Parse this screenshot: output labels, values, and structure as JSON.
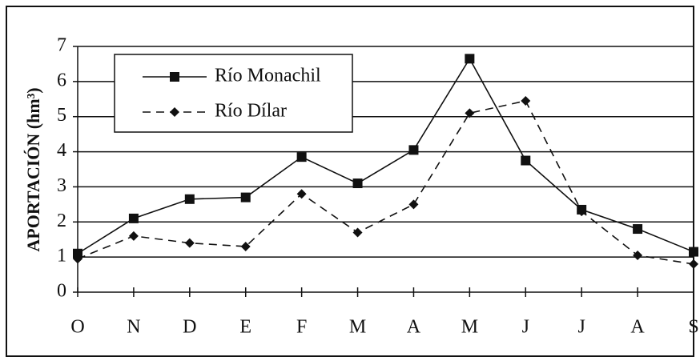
{
  "chart_data": {
    "type": "line",
    "y_label": "APORTACIÓN (hm³)",
    "categories": [
      "O",
      "N",
      "D",
      "E",
      "F",
      "M",
      "A",
      "M",
      "J",
      "J",
      "A",
      "S"
    ],
    "series": [
      {
        "name": "Río Monachil",
        "color": "#111111",
        "marker": "square",
        "dashed": false,
        "values": [
          1.1,
          2.1,
          2.65,
          2.7,
          3.85,
          3.1,
          4.05,
          6.65,
          3.75,
          2.35,
          1.8,
          1.15
        ]
      },
      {
        "name": "Río Dílar",
        "color": "#111111",
        "marker": "diamond",
        "dashed": true,
        "values": [
          0.95,
          1.6,
          1.4,
          1.3,
          2.8,
          1.7,
          2.5,
          5.1,
          5.45,
          2.3,
          1.05,
          0.8
        ]
      }
    ],
    "ylim": [
      0,
      7
    ],
    "yticks": [
      0,
      1,
      2,
      3,
      4,
      5,
      6,
      7
    ],
    "grid": true,
    "legend": "top-left"
  }
}
